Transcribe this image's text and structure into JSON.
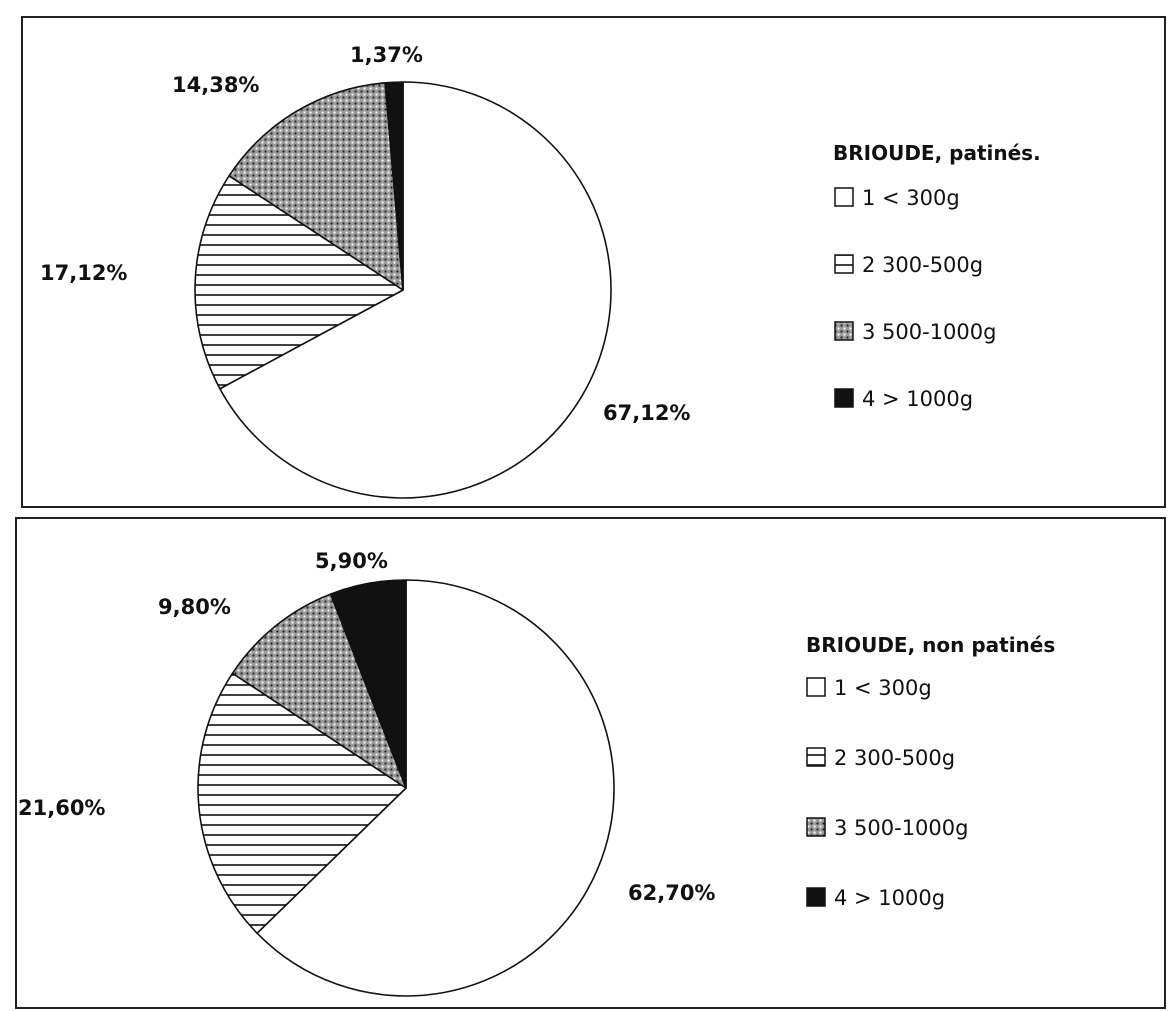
{
  "chart_data": [
    {
      "type": "pie",
      "title": "BRIOUDE, patinés.",
      "categories": [
        "1 < 300g",
        "2 300-500g",
        "3 500-1000g",
        "4 > 1000g"
      ],
      "values": [
        67.12,
        17.12,
        14.38,
        1.37
      ],
      "value_labels": [
        "67,12%",
        "17,12%",
        "14,38%",
        "1,37%"
      ],
      "fills": [
        "white",
        "horizontal-stripes",
        "dotted-grey",
        "black"
      ],
      "legend": "right"
    },
    {
      "type": "pie",
      "title": "BRIOUDE, non patinés",
      "categories": [
        "1 < 300g",
        "2 300-500g",
        "3 500-1000g",
        "4 > 1000g"
      ],
      "values": [
        62.7,
        21.6,
        9.8,
        5.9
      ],
      "value_labels": [
        "62,70%",
        "21,60%",
        "9,80%",
        "5,90%"
      ],
      "fills": [
        "white",
        "horizontal-stripes",
        "dotted-grey",
        "black"
      ],
      "legend": "right"
    }
  ]
}
